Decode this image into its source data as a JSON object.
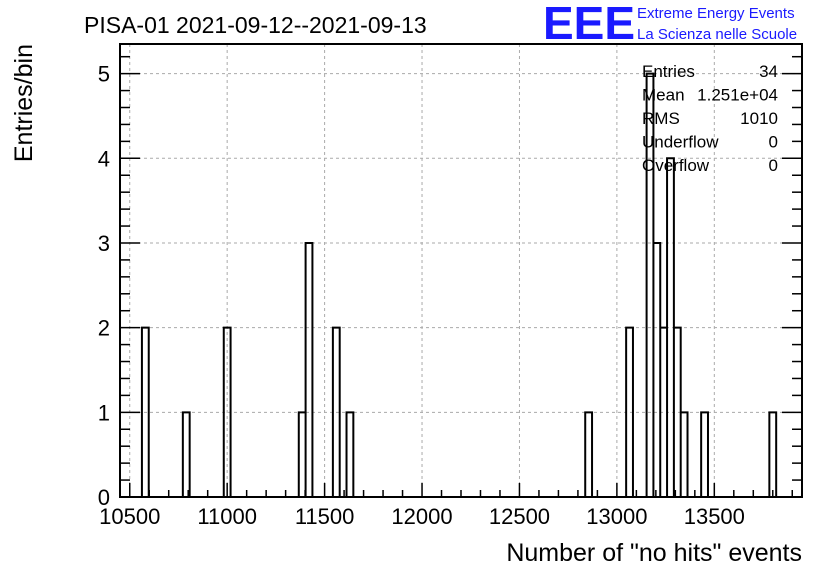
{
  "chart_data": {
    "type": "bar",
    "title": "PISA-01 2021-09-12--2021-09-13",
    "xlabel": "Number of \"no hits\" events",
    "ylabel": "Entries/bin",
    "xlim": [
      10450,
      13950
    ],
    "ylim": [
      0,
      5.35
    ],
    "xticks": [
      10500,
      11000,
      11500,
      12000,
      12500,
      13000,
      13500
    ],
    "yticks": [
      0,
      1,
      2,
      3,
      4,
      5
    ],
    "bin_width": 35,
    "bins": [
      {
        "x": 10580,
        "y": 2
      },
      {
        "x": 10790,
        "y": 1
      },
      {
        "x": 11000,
        "y": 2
      },
      {
        "x": 11385,
        "y": 1
      },
      {
        "x": 11420,
        "y": 3
      },
      {
        "x": 11560,
        "y": 2
      },
      {
        "x": 11630,
        "y": 1
      },
      {
        "x": 12855,
        "y": 1
      },
      {
        "x": 13065,
        "y": 2
      },
      {
        "x": 13170,
        "y": 5
      },
      {
        "x": 13205,
        "y": 3
      },
      {
        "x": 13240,
        "y": 2
      },
      {
        "x": 13275,
        "y": 4
      },
      {
        "x": 13310,
        "y": 2
      },
      {
        "x": 13345,
        "y": 1
      },
      {
        "x": 13450,
        "y": 1
      },
      {
        "x": 13800,
        "y": 1
      }
    ],
    "grid": true,
    "stats_box": {
      "rows": [
        {
          "label": "Entries",
          "value": "34"
        },
        {
          "label": "Mean",
          "value": "1.251e+04"
        },
        {
          "label": "RMS",
          "value": "1010"
        },
        {
          "label": "Underflow",
          "value": "0"
        },
        {
          "label": "Overflow",
          "value": "0"
        }
      ]
    }
  },
  "logo": {
    "mark": "EEE",
    "line1": "Extreme Energy Events",
    "line2": "La Scienza nelle Scuole",
    "color": "#1a1aff"
  }
}
